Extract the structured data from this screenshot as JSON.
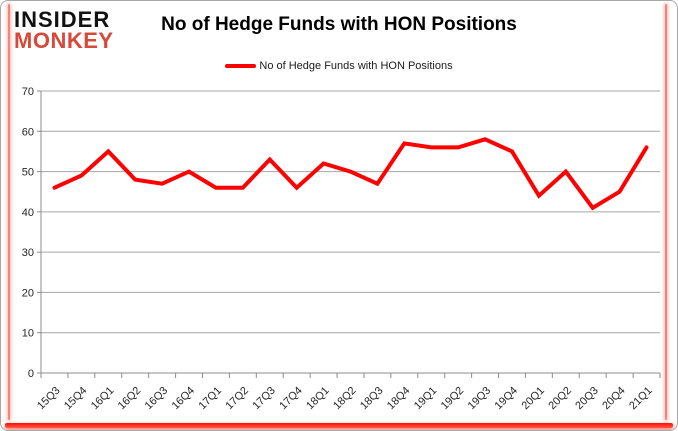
{
  "brand": {
    "line1": "INSIDER",
    "line2": "MONKEY"
  },
  "header": {
    "title": "No of Hedge Funds with HON Positions"
  },
  "legend": {
    "label": "No of Hedge Funds with HON Positions"
  },
  "chart_data": {
    "type": "line",
    "title": "No of Hedge Funds with HON Positions",
    "categories": [
      "15Q3",
      "15Q4",
      "16Q1",
      "16Q2",
      "16Q3",
      "16Q4",
      "17Q1",
      "17Q2",
      "17Q3",
      "17Q4",
      "18Q1",
      "18Q2",
      "18Q3",
      "18Q4",
      "19Q1",
      "19Q2",
      "19Q3",
      "19Q4",
      "20Q1",
      "20Q2",
      "20Q3",
      "20Q4",
      "21Q1"
    ],
    "series": [
      {
        "name": "No of Hedge Funds with HON Positions",
        "values": [
          46,
          49,
          55,
          48,
          47,
          50,
          46,
          46,
          53,
          46,
          52,
          50,
          47,
          57,
          56,
          56,
          58,
          55,
          44,
          50,
          41,
          45,
          56
        ]
      }
    ],
    "ylim": [
      0,
      70
    ],
    "ytick_step": 10,
    "grid": true,
    "legend_position": "top",
    "xlabel": "",
    "ylabel": ""
  },
  "colors": {
    "series_line": "#FE0000",
    "brand_black": "#121212",
    "brand_red": "#D8493A",
    "grid": "#A6A6A6",
    "axis": "#8C8C8C",
    "tick_label": "#262626",
    "glow_red": "#FF2B1A"
  }
}
